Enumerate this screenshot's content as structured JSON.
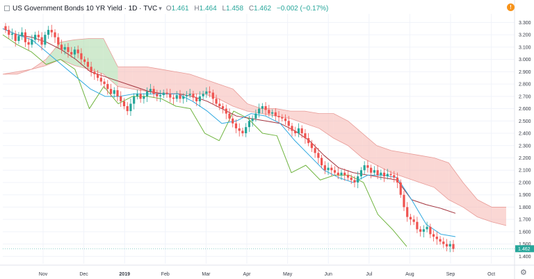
{
  "header": {
    "symbol_title": "US Government Bonds 10 YR Yield",
    "interval": "1D",
    "source": "TVC",
    "o_label": "O",
    "o_value": "1.461",
    "h_label": "H",
    "h_value": "1.464",
    "l_label": "L",
    "l_value": "1.458",
    "c_label": "C",
    "c_value": "1.462",
    "change": "−0.002 (−0.17%)"
  },
  "price_badge": "1.462",
  "icons": {
    "warning": "warning-icon",
    "settings": "gear-icon",
    "symbol_box": "square-icon",
    "menu": "chevron-down-icon"
  },
  "colors": {
    "up": "#26a69a",
    "down": "#ef5350",
    "conversion_line": "#2ea8e0",
    "base_line": "#a3333d",
    "lagging_span": "#6fb43f",
    "cloud_bearish": "#f5b7b1",
    "cloud_bullish": "#a9d8a6"
  },
  "chart_data": {
    "type": "candlestick",
    "title": "US Government Bonds 10 YR Yield",
    "x_ticks": [
      "Nov",
      "Dec",
      "2019",
      "Feb",
      "Mar",
      "Apr",
      "May",
      "Jun",
      "Jul",
      "Aug",
      "Sep",
      "Oct"
    ],
    "y_ticks": [
      3.3,
      3.2,
      3.1,
      3.0,
      2.9,
      2.8,
      2.7,
      2.6,
      2.5,
      2.4,
      2.3,
      2.2,
      2.1,
      2.0,
      1.9,
      1.8,
      1.7,
      1.6,
      1.5,
      1.4
    ],
    "ylim": [
      1.34,
      3.37
    ],
    "closes": [
      3.24,
      3.2,
      3.21,
      3.15,
      3.19,
      3.22,
      3.14,
      3.12,
      3.16,
      3.2,
      3.18,
      3.12,
      3.2,
      3.24,
      3.22,
      3.18,
      3.12,
      3.08,
      3.1,
      3.06,
      3.04,
      3.08,
      3.05,
      3.0,
      2.98,
      2.94,
      2.9,
      2.88,
      2.85,
      2.82,
      2.8,
      2.76,
      2.72,
      2.75,
      2.7,
      2.66,
      2.62,
      2.58,
      2.64,
      2.7,
      2.72,
      2.68,
      2.7,
      2.74,
      2.76,
      2.72,
      2.7,
      2.71,
      2.73,
      2.72,
      2.69,
      2.68,
      2.71,
      2.68,
      2.7,
      2.71,
      2.72,
      2.69,
      2.66,
      2.7,
      2.72,
      2.74,
      2.73,
      2.68,
      2.64,
      2.62,
      2.6,
      2.56,
      2.52,
      2.48,
      2.44,
      2.42,
      2.4,
      2.45,
      2.5,
      2.52,
      2.56,
      2.6,
      2.62,
      2.59,
      2.56,
      2.57,
      2.54,
      2.53,
      2.52,
      2.5,
      2.46,
      2.42,
      2.4,
      2.44,
      2.4,
      2.36,
      2.32,
      2.28,
      2.24,
      2.2,
      2.14,
      2.1,
      2.12,
      2.1,
      2.08,
      2.06,
      2.08,
      2.06,
      2.04,
      2.02,
      2.0,
      2.05,
      2.1,
      2.14,
      2.12,
      2.08,
      2.1,
      2.06,
      2.08,
      2.05,
      2.07,
      2.06,
      2.04,
      2.0,
      1.9,
      1.8,
      1.72,
      1.7,
      1.68,
      1.62,
      1.6,
      1.62,
      1.64,
      1.58,
      1.56,
      1.54,
      1.52,
      1.5,
      1.48,
      1.5,
      1.46
    ],
    "conversion_line": [
      3.25,
      3.2,
      3.16,
      3.06,
      2.96,
      2.86,
      2.76,
      2.7,
      2.7,
      2.72,
      2.72,
      2.72,
      2.72,
      2.66,
      2.58,
      2.48,
      2.5,
      2.56,
      2.54,
      2.48,
      2.34,
      2.22,
      2.1,
      2.04,
      2.0,
      2.06,
      2.06,
      2.04,
      1.86,
      1.66,
      1.58,
      1.56
    ],
    "base_line": [
      3.25,
      3.2,
      3.18,
      3.14,
      3.08,
      3.0,
      2.9,
      2.86,
      2.82,
      2.78,
      2.74,
      2.72,
      2.72,
      2.7,
      2.66,
      2.6,
      2.54,
      2.52,
      2.5,
      2.48,
      2.42,
      2.34,
      2.22,
      2.12,
      2.08,
      2.06,
      2.04,
      2.02,
      1.86,
      1.82,
      1.79,
      1.75
    ],
    "lagging_span": [
      3.2,
      3.12,
      3.06,
      2.96,
      3.0,
      2.92,
      2.6,
      2.78,
      2.64,
      2.7,
      2.7,
      2.68,
      2.62,
      2.6,
      2.4,
      2.34,
      2.58,
      2.52,
      2.4,
      2.38,
      2.08,
      2.14,
      2.02,
      2.06,
      2.06,
      2.0,
      1.74,
      1.62,
      1.48
    ],
    "cloud_top": [
      2.88,
      2.88,
      2.92,
      3.0,
      3.14,
      3.16,
      3.17,
      3.17,
      2.94,
      2.94,
      2.94,
      2.92,
      2.9,
      2.88,
      2.84,
      2.8,
      2.76,
      2.64,
      2.6,
      2.6,
      2.58,
      2.58,
      2.56,
      2.56,
      2.5,
      2.4,
      2.3,
      2.26,
      2.24,
      2.22,
      2.2,
      2.16,
      2.0,
      1.86,
      1.8,
      1.8
    ],
    "cloud_bottom": [
      2.88,
      2.9,
      2.92,
      2.95,
      3.0,
      2.95,
      2.92,
      2.88,
      2.78,
      2.76,
      2.74,
      2.72,
      2.72,
      2.72,
      2.72,
      2.68,
      2.62,
      2.58,
      2.56,
      2.54,
      2.52,
      2.48,
      2.44,
      2.36,
      2.3,
      2.2,
      2.14,
      2.08,
      2.04,
      2.0,
      1.96,
      1.86,
      1.8,
      1.72,
      1.68,
      1.65
    ]
  }
}
